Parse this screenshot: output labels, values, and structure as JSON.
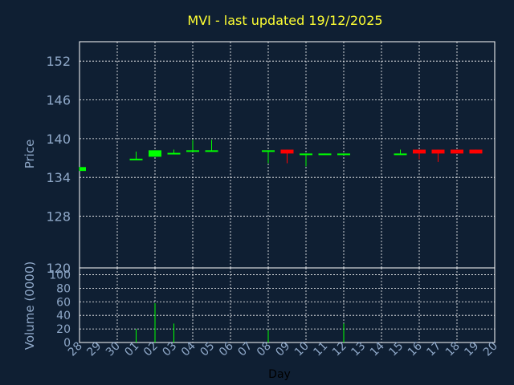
{
  "chart_data": {
    "type": "candlestick",
    "title": "MVI - last updated 19/12/2025",
    "ylabel": "Price",
    "volume_label": "Volume (0000)",
    "xlabel": "Day",
    "ylim": [
      120,
      155
    ],
    "volume_ylim": [
      0,
      110
    ],
    "price_ticks": [
      "152",
      "146",
      "140",
      "134",
      "128",
      "120"
    ],
    "price_tick_values": [
      152,
      146,
      140,
      134,
      128,
      120
    ],
    "volume_ticks": [
      "100",
      "80",
      "60",
      "40",
      "20",
      "0"
    ],
    "volume_tick_values": [
      100,
      80,
      60,
      40,
      20,
      0
    ],
    "days": [
      "28",
      "29",
      "30",
      "01",
      "02",
      "03",
      "04",
      "05",
      "06",
      "07",
      "08",
      "09",
      "10",
      "11",
      "12",
      "13",
      "14",
      "15",
      "16",
      "17",
      "18",
      "19",
      "20"
    ],
    "candles": [
      {
        "day": "28",
        "open": 135.0,
        "close": 135.6,
        "high": 135.6,
        "low": 135.0,
        "up": true,
        "partial": true
      },
      {
        "day": "01",
        "open": 136.8,
        "close": 136.9,
        "high": 138.0,
        "low": 136.8,
        "up": true
      },
      {
        "day": "02",
        "open": 137.2,
        "close": 138.2,
        "high": 138.2,
        "low": 137.2,
        "up": true
      },
      {
        "day": "03",
        "open": 137.6,
        "close": 137.8,
        "high": 138.3,
        "low": 137.6,
        "up": true
      },
      {
        "day": "04",
        "open": 138.0,
        "close": 138.2,
        "high": 139.8,
        "low": 138.0,
        "up": true
      },
      {
        "day": "05",
        "open": 138.0,
        "close": 138.2,
        "high": 139.8,
        "low": 138.0,
        "up": true
      },
      {
        "day": "08",
        "open": 138.1,
        "close": 138.2,
        "high": 138.2,
        "low": 136.2,
        "up": true
      },
      {
        "day": "09",
        "open": 138.3,
        "close": 137.7,
        "high": 138.3,
        "low": 136.2,
        "up": false
      },
      {
        "day": "10",
        "open": 137.6,
        "close": 137.7,
        "high": 137.7,
        "low": 135.7,
        "up": true
      },
      {
        "day": "11",
        "open": 137.6,
        "close": 137.7,
        "high": 137.7,
        "low": 137.6,
        "up": true
      },
      {
        "day": "12",
        "open": 137.6,
        "close": 137.7,
        "high": 137.7,
        "low": 137.6,
        "up": true
      },
      {
        "day": "15",
        "open": 137.6,
        "close": 137.7,
        "high": 138.3,
        "low": 137.6,
        "up": true
      },
      {
        "day": "16",
        "open": 138.3,
        "close": 137.7,
        "high": 138.3,
        "low": 136.8,
        "up": false
      },
      {
        "day": "17",
        "open": 138.3,
        "close": 137.7,
        "high": 138.3,
        "low": 136.4,
        "up": false
      },
      {
        "day": "18",
        "open": 138.3,
        "close": 137.7,
        "high": 138.3,
        "low": 137.7,
        "up": false
      },
      {
        "day": "19",
        "open": 138.3,
        "close": 137.7,
        "high": 138.3,
        "low": 137.7,
        "up": false
      }
    ],
    "volumes": [
      {
        "day": "01",
        "value": 20
      },
      {
        "day": "02",
        "value": 58
      },
      {
        "day": "03",
        "value": 28
      },
      {
        "day": "08",
        "value": 18
      },
      {
        "day": "12",
        "value": 28
      }
    ],
    "colors": {
      "background": "#0f1f33",
      "up": "#00ff00",
      "down": "#ff0000",
      "grid": "#ffffff",
      "axis_text": "#8fa8c8",
      "title": "#ffff33"
    },
    "grid": true
  }
}
